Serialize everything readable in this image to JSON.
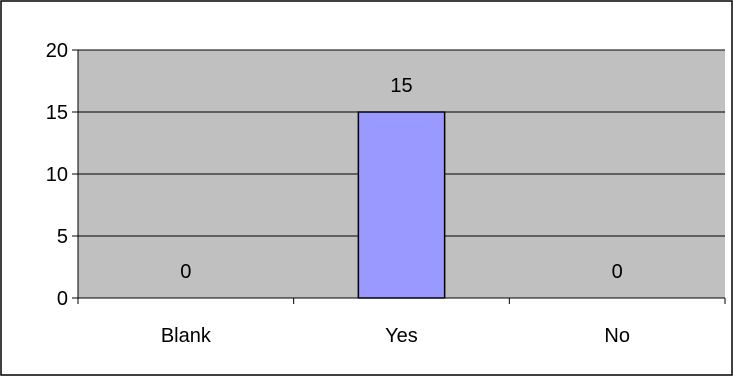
{
  "chart_data": {
    "type": "bar",
    "title": "",
    "xlabel": "",
    "ylabel": "",
    "categories": [
      "Blank",
      "Yes",
      "No"
    ],
    "values": [
      0,
      15,
      0
    ],
    "data_labels": [
      "0",
      "15",
      "0"
    ],
    "ylim": [
      0,
      20
    ],
    "yticks": [
      0,
      5,
      10,
      15,
      20
    ],
    "ytick_labels": [
      "0",
      "5",
      "10",
      "15",
      "20"
    ],
    "grid": true,
    "legend": false,
    "colors": {
      "plot_area": "#c0c0c0",
      "bar_fill": "#9999ff",
      "bar_stroke": "#000000",
      "gridline": "#000000",
      "border": "#000000"
    }
  }
}
